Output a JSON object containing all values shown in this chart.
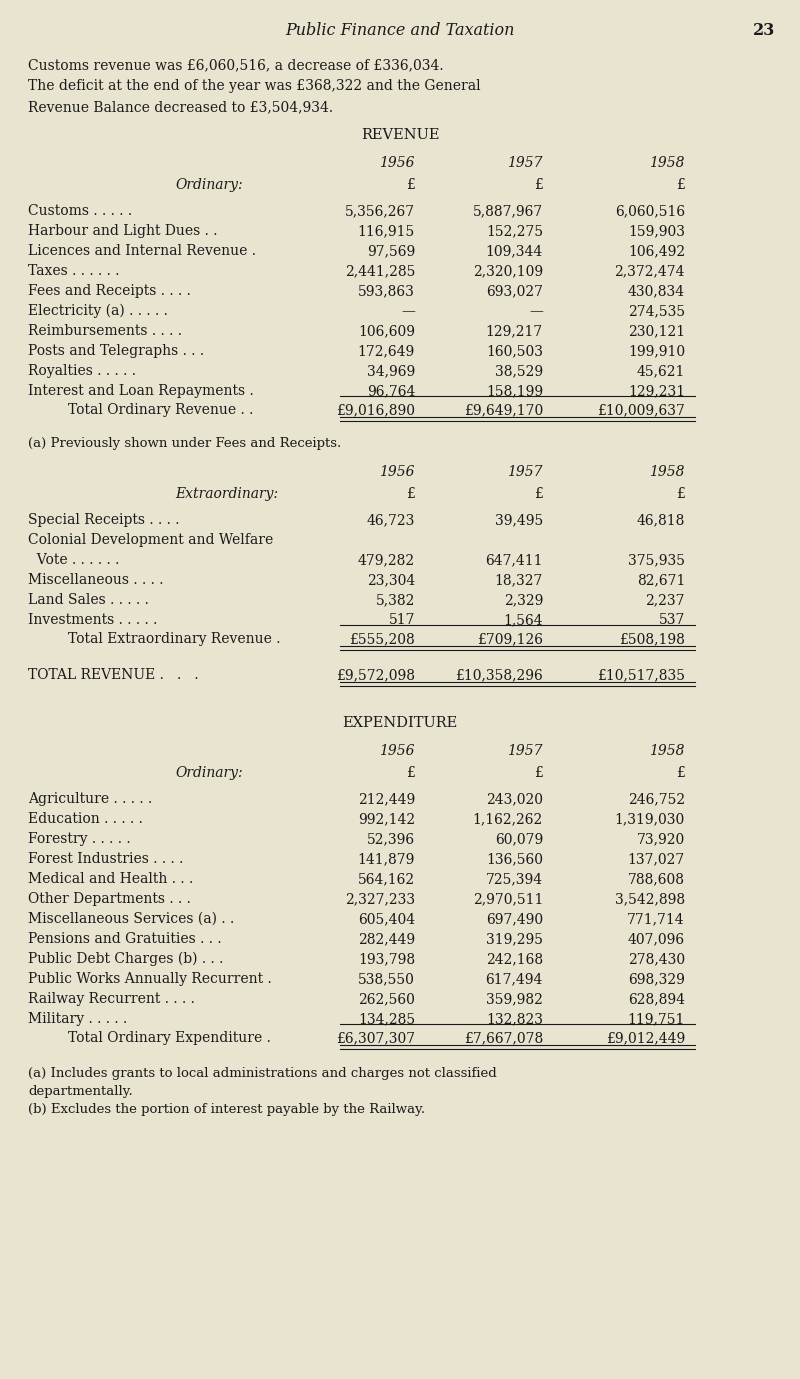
{
  "bg_color": "#e8e4d0",
  "text_color": "#1a1a1a",
  "page_title": "Public Finance and Taxation",
  "page_number": "23",
  "intro_lines": [
    "Customs revenue was £6,060,516, a decrease of £336,034.",
    "The deficit at the end of the year was £368,322 and the General",
    "Revenue Balance decreased to £3,504,934."
  ],
  "revenue_title": "REVENUE",
  "revenue_years_header": [
    "1956",
    "1957",
    "1958"
  ],
  "revenue_ordinary_label": "Ordinary:",
  "revenue_currency_row": [
    "£",
    "£",
    "£"
  ],
  "revenue_ordinary_rows": [
    [
      "Customs . . . . .",
      "5,356,267",
      "5,887,967",
      "6,060,516"
    ],
    [
      "Harbour and Light Dues . .",
      "116,915",
      "152,275",
      "159,903"
    ],
    [
      "Licences and Internal Revenue .",
      "97,569",
      "109,344",
      "106,492"
    ],
    [
      "Taxes . . . . . .",
      "2,441,285",
      "2,320,109",
      "2,372,474"
    ],
    [
      "Fees and Receipts . . . .",
      "593,863",
      "693,027",
      "430,834"
    ],
    [
      "Electricity (a) . . . . .",
      "—",
      "—",
      "274,535"
    ],
    [
      "Reimbursements . . . .",
      "106,609",
      "129,217",
      "230,121"
    ],
    [
      "Posts and Telegraphs . . .",
      "172,649",
      "160,503",
      "199,910"
    ],
    [
      "Royalties . . . . .",
      "34,969",
      "38,529",
      "45,621"
    ],
    [
      "Interest and Loan Repayments .",
      "96,764",
      "158,199",
      "129,231"
    ]
  ],
  "revenue_ordinary_total_label": "Total Ordinary Revenue . .",
  "revenue_ordinary_total": [
    "£9,016,890",
    "£9,649,170",
    "£10,009,637"
  ],
  "revenue_footnote_a": "(a) Previously shown under Fees and Receipts.",
  "revenue_extraordinary_label": "Extraordinary:",
  "revenue_extraordinary_rows": [
    [
      "Special Receipts . . . .",
      "46,723",
      "39,495",
      "46,818"
    ],
    [
      "Colonial Development and Welfare",
      "",
      "",
      ""
    ],
    [
      "  Vote . . . . . .",
      "479,282",
      "647,411",
      "375,935"
    ],
    [
      "Miscellaneous . . . .",
      "23,304",
      "18,327",
      "82,671"
    ],
    [
      "Land Sales . . . . .",
      "5,382",
      "2,329",
      "2,237"
    ],
    [
      "Investments . . . . .",
      "517",
      "1,564",
      "537"
    ]
  ],
  "revenue_extraordinary_total_label": "Total Extraordinary Revenue .",
  "revenue_extraordinary_total": [
    "£555,208",
    "£709,126",
    "£508,198"
  ],
  "total_revenue_label": "TOTAL REVENUE .   .   .",
  "total_revenue": [
    "£9,572,098",
    "£10,358,296",
    "£10,517,835"
  ],
  "expenditure_title": "EXPENDITURE",
  "expenditure_years_header": [
    "1956",
    "1957",
    "1958"
  ],
  "expenditure_ordinary_label": "Ordinary:",
  "expenditure_currency_row": [
    "£",
    "£",
    "£"
  ],
  "expenditure_ordinary_rows": [
    [
      "Agriculture . . . . .",
      "212,449",
      "243,020",
      "246,752"
    ],
    [
      "Education . . . . .",
      "992,142",
      "1,162,262",
      "1,319,030"
    ],
    [
      "Forestry . . . . .",
      "52,396",
      "60,079",
      "73,920"
    ],
    [
      "Forest Industries . . . .",
      "141,879",
      "136,560",
      "137,027"
    ],
    [
      "Medical and Health . . .",
      "564,162",
      "725,394",
      "788,608"
    ],
    [
      "Other Departments . . .",
      "2,327,233",
      "2,970,511",
      "3,542,898"
    ],
    [
      "Miscellaneous Services (a) . .",
      "605,404",
      "697,490",
      "771,714"
    ],
    [
      "Pensions and Gratuities . . .",
      "282,449",
      "319,295",
      "407,096"
    ],
    [
      "Public Debt Charges (b) . . .",
      "193,798",
      "242,168",
      "278,430"
    ],
    [
      "Public Works Annually Recurrent .",
      "538,550",
      "617,494",
      "698,329"
    ],
    [
      "Railway Recurrent . . . .",
      "262,560",
      "359,982",
      "628,894"
    ],
    [
      "Military . . . . .",
      "134,285",
      "132,823",
      "119,751"
    ]
  ],
  "expenditure_ordinary_total_label": "Total Ordinary Expenditure .",
  "expenditure_ordinary_total": [
    "£6,307,307",
    "£7,667,078",
    "£9,012,449"
  ],
  "expenditure_footnote_a": "(a) Includes grants to local administrations and charges not classified",
  "expenditure_footnote_a2": "departmentally.",
  "expenditure_footnote_b": "(b) Excludes the portion of interest payable by the Railway."
}
